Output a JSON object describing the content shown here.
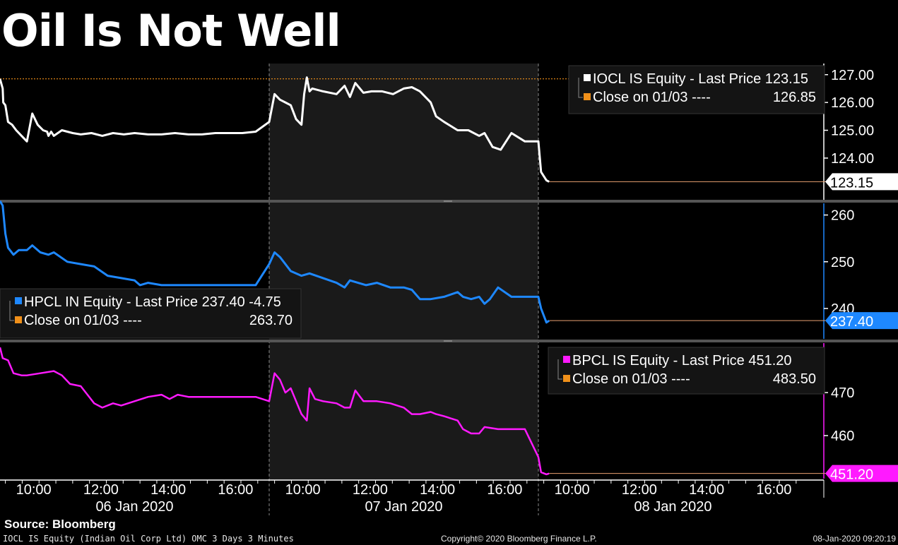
{
  "title": "Oil Is Not Well",
  "source": "Source: Bloomberg",
  "footer": {
    "left": "IOCL IS Equity (Indian Oil Corp Ltd) OMC 3 Days 3 Minutes",
    "center": "Copyright© 2020 Bloomberg Finance L.P.",
    "right": "08-Jan-2020 09:20:19"
  },
  "colors": {
    "iocl": "#ffffff",
    "hpcl": "#1e88ff",
    "bpcl": "#ff1aff",
    "close": "#f0901a",
    "shade": "#1a1a1a"
  },
  "chart_data": {
    "type": "line",
    "x_time_ticks": [
      "10:00",
      "12:00",
      "14:00",
      "16:00",
      "10:00",
      "12:00",
      "14:00",
      "16:00",
      "10:00",
      "12:00",
      "14:00",
      "16:00"
    ],
    "x_day_labels": [
      "06 Jan 2020",
      "07 Jan 2020",
      "08 Jan 2020"
    ],
    "panels": [
      {
        "id": "iocl",
        "ylim": [
          122.5,
          127.4
        ],
        "yticks": [
          "127.00",
          "126.00",
          "125.00",
          "124.00"
        ],
        "last_label": "123.15",
        "last_value": 123.15,
        "close_value": 126.85,
        "legend": {
          "name": "IOCL IS Equity",
          "suffix": " - Last Price",
          "last": "123.15",
          "change": "",
          "close_label": "Close on 01/03",
          "close_dashes": "----",
          "close": "126.85"
        },
        "series": {
          "name": "IOCL IS Equity",
          "x": [
            0,
            0.01,
            0.012,
            0.02,
            0.03,
            0.045,
            0.06,
            0.08,
            0.1,
            0.12,
            0.14,
            0.16,
            0.175,
            0.18,
            0.19,
            0.2,
            0.23,
            0.27,
            0.3,
            0.34,
            0.38,
            0.42,
            0.46,
            0.5,
            0.55,
            0.6,
            0.65,
            0.7,
            0.75,
            0.8,
            0.85,
            0.9,
            0.95,
            1.0,
            1.02,
            1.04,
            1.06,
            1.08,
            1.1,
            1.12,
            1.13,
            1.14,
            1.15,
            1.16,
            1.2,
            1.25,
            1.28,
            1.3,
            1.32,
            1.35,
            1.38,
            1.42,
            1.46,
            1.5,
            1.53,
            1.56,
            1.6,
            1.62,
            1.65,
            1.7,
            1.74,
            1.78,
            1.8,
            1.83,
            1.86,
            1.9,
            1.95,
            2.0,
            2.01,
            2.03,
            2.04
          ],
          "y": [
            126.85,
            126.5,
            126.0,
            125.9,
            125.3,
            125.2,
            125.0,
            124.8,
            124.6,
            125.6,
            125.2,
            125.0,
            124.95,
            124.8,
            124.95,
            124.8,
            125.0,
            124.9,
            124.85,
            124.9,
            124.8,
            124.9,
            124.85,
            124.9,
            124.85,
            124.85,
            124.9,
            124.85,
            124.85,
            124.9,
            124.9,
            124.9,
            124.95,
            125.3,
            126.3,
            126.1,
            126.0,
            125.9,
            125.4,
            125.2,
            126.3,
            126.9,
            126.4,
            126.5,
            126.4,
            126.3,
            126.6,
            126.2,
            126.7,
            126.35,
            126.4,
            126.4,
            126.3,
            126.5,
            126.55,
            126.4,
            126.0,
            125.5,
            125.3,
            125.0,
            125.0,
            124.8,
            124.9,
            124.4,
            124.3,
            124.9,
            124.6,
            124.6,
            123.5,
            123.2,
            123.15
          ]
        }
      },
      {
        "id": "hpcl",
        "ylim": [
          233.5,
          262.5
        ],
        "yticks": [
          "260",
          "250",
          "240"
        ],
        "last_label": "237.40",
        "last_value": 237.4,
        "close_value": 263.7,
        "legend": {
          "name": "HPCL IN Equity",
          "suffix": " - Last Price",
          "last": "237.40",
          "change": "-4.75",
          "close_label": "Close on 01/03",
          "close_dashes": "----",
          "close": "263.70"
        },
        "series": {
          "name": "HPCL IN Equity",
          "x": [
            0,
            0.01,
            0.02,
            0.03,
            0.05,
            0.07,
            0.1,
            0.12,
            0.15,
            0.18,
            0.2,
            0.25,
            0.3,
            0.35,
            0.4,
            0.45,
            0.5,
            0.52,
            0.55,
            0.6,
            0.65,
            0.7,
            0.75,
            0.8,
            0.85,
            0.9,
            0.95,
            1.0,
            1.02,
            1.04,
            1.06,
            1.08,
            1.12,
            1.15,
            1.2,
            1.25,
            1.28,
            1.3,
            1.33,
            1.36,
            1.4,
            1.45,
            1.5,
            1.53,
            1.56,
            1.6,
            1.65,
            1.7,
            1.72,
            1.75,
            1.78,
            1.8,
            1.82,
            1.85,
            1.9,
            1.95,
            2.0,
            2.01,
            2.03,
            2.04
          ],
          "y": [
            263.0,
            262.0,
            256.0,
            253.0,
            251.5,
            252.5,
            252.5,
            253.5,
            252.0,
            251.5,
            252.0,
            250.0,
            249.5,
            249.0,
            247.0,
            246.5,
            246.0,
            245.0,
            245.5,
            245.0,
            245.0,
            245.0,
            245.0,
            245.0,
            245.0,
            245.0,
            245.0,
            249.5,
            252.0,
            251.0,
            249.5,
            248.0,
            247.0,
            247.5,
            246.5,
            245.5,
            244.5,
            246.0,
            245.5,
            245.0,
            245.5,
            244.5,
            244.5,
            244.0,
            242.0,
            242.0,
            242.5,
            243.5,
            242.5,
            242.0,
            242.5,
            241.0,
            242.0,
            244.5,
            242.5,
            242.5,
            242.5,
            240.0,
            237.0,
            237.4
          ]
        }
      },
      {
        "id": "bpcl",
        "ylim": [
          450.0,
          481.5
        ],
        "yticks": [
          "470",
          "460"
        ],
        "last_label": "451.20",
        "last_value": 451.2,
        "close_value": 483.5,
        "legend": {
          "name": "BPCL IS Equity",
          "suffix": " - Last Price",
          "last": "451.20",
          "change": "",
          "close_label": "Close on 01/03",
          "close_dashes": "----",
          "close": "483.50"
        },
        "series": {
          "name": "BPCL IS Equity",
          "x": [
            0,
            0.01,
            0.03,
            0.05,
            0.08,
            0.1,
            0.15,
            0.2,
            0.23,
            0.26,
            0.3,
            0.35,
            0.38,
            0.42,
            0.45,
            0.5,
            0.55,
            0.6,
            0.63,
            0.66,
            0.7,
            0.75,
            0.8,
            0.85,
            0.9,
            0.95,
            1.0,
            1.02,
            1.04,
            1.06,
            1.08,
            1.1,
            1.12,
            1.14,
            1.15,
            1.17,
            1.2,
            1.25,
            1.28,
            1.3,
            1.32,
            1.35,
            1.4,
            1.45,
            1.5,
            1.53,
            1.56,
            1.6,
            1.62,
            1.65,
            1.7,
            1.72,
            1.75,
            1.78,
            1.8,
            1.85,
            1.9,
            1.95,
            2.0,
            2.01,
            2.03,
            2.04
          ],
          "y": [
            480.5,
            478.0,
            477.5,
            474.5,
            474.0,
            474.0,
            474.5,
            475.0,
            474.0,
            472.0,
            471.5,
            467.5,
            466.5,
            467.5,
            467.0,
            468.0,
            469.0,
            469.5,
            468.5,
            469.5,
            469.0,
            469.0,
            469.0,
            469.0,
            469.0,
            469.0,
            468.0,
            474.5,
            473.0,
            470.0,
            471.0,
            468.0,
            465.0,
            463.5,
            471.0,
            468.5,
            468.0,
            467.5,
            466.5,
            466.5,
            470.5,
            468.0,
            468.0,
            467.5,
            466.5,
            465.0,
            465.0,
            465.5,
            465.0,
            464.5,
            463.5,
            461.5,
            460.5,
            460.5,
            462.0,
            461.5,
            461.5,
            461.5,
            455.0,
            451.5,
            451.0,
            451.2
          ]
        }
      }
    ]
  }
}
